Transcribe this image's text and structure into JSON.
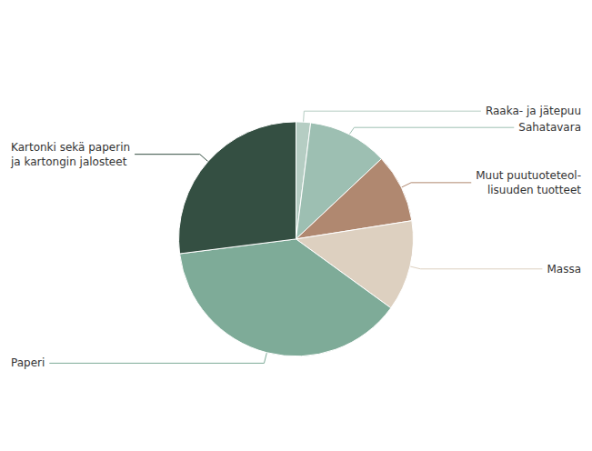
{
  "chart_data": {
    "type": "pie",
    "categories": [
      "Raaka- ja jätepuu",
      "Sahatavara",
      "Muut puutuoteteol-\nlisuuden tuotteet",
      "Massa",
      "Paperi",
      "Kartonki sekä paperin\nja kartongin jalosteet"
    ],
    "values": [
      2.0,
      11.0,
      9.5,
      12.5,
      38.0,
      27.0
    ],
    "colors": [
      "#b5cdc3",
      "#9dbfb2",
      "#b08870",
      "#ddd0c0",
      "#7eab98",
      "#344f42"
    ]
  }
}
